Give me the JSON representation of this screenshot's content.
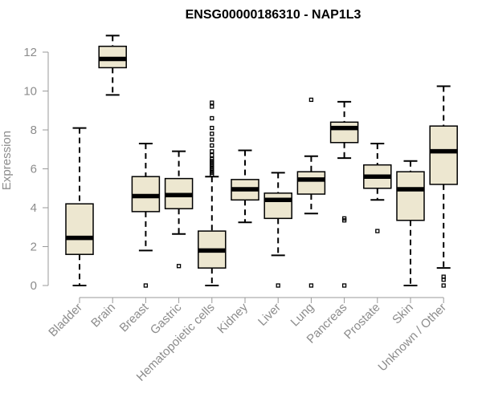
{
  "chart_data": {
    "type": "boxplot",
    "title": "ENSG00000186310 - NAP1L3",
    "xlabel": "",
    "ylabel": "Expression",
    "ylim": [
      0,
      12.8
    ],
    "yticks": [
      0,
      2,
      4,
      6,
      8,
      10,
      12
    ],
    "box_fill": "#ede7d0",
    "grid": false,
    "categories": [
      "Bladder",
      "Brain",
      "Breast",
      "Gastric",
      "Hematopoietic cells",
      "Kidney",
      "Liver",
      "Lung",
      "Pancreas",
      "Prostate",
      "Skin",
      "Unknown / Other"
    ],
    "boxes": [
      {
        "q1": 1.6,
        "median": 2.45,
        "q3": 4.2,
        "whisker_low": 0.0,
        "whisker_high": 8.1,
        "outliers": []
      },
      {
        "q1": 11.2,
        "median": 11.65,
        "q3": 12.3,
        "whisker_low": 9.8,
        "whisker_high": 12.85,
        "outliers": []
      },
      {
        "q1": 3.8,
        "median": 4.6,
        "q3": 5.6,
        "whisker_low": 1.8,
        "whisker_high": 7.3,
        "outliers": [
          0.0
        ]
      },
      {
        "q1": 3.95,
        "median": 4.65,
        "q3": 5.5,
        "whisker_low": 2.65,
        "whisker_high": 6.9,
        "outliers": [
          1.0
        ]
      },
      {
        "q1": 0.9,
        "median": 1.8,
        "q3": 2.8,
        "whisker_low": 0.0,
        "whisker_high": 5.6,
        "outliers": [
          5.7,
          5.8,
          5.9,
          6.0,
          6.1,
          6.2,
          6.3,
          6.4,
          6.5,
          6.7,
          6.9,
          7.2,
          7.5,
          7.8,
          8.1,
          8.6,
          9.2,
          9.4
        ]
      },
      {
        "q1": 4.4,
        "median": 4.95,
        "q3": 5.45,
        "whisker_low": 3.25,
        "whisker_high": 6.95,
        "outliers": []
      },
      {
        "q1": 3.45,
        "median": 4.4,
        "q3": 4.75,
        "whisker_low": 1.55,
        "whisker_high": 5.8,
        "outliers": [
          0.0
        ]
      },
      {
        "q1": 4.7,
        "median": 5.45,
        "q3": 5.85,
        "whisker_low": 3.7,
        "whisker_high": 6.65,
        "outliers": [
          0.0,
          9.55
        ]
      },
      {
        "q1": 7.35,
        "median": 8.1,
        "q3": 8.4,
        "whisker_low": 6.55,
        "whisker_high": 9.45,
        "outliers": [
          0.0,
          3.35,
          3.45
        ]
      },
      {
        "q1": 5.0,
        "median": 5.6,
        "q3": 6.2,
        "whisker_low": 4.4,
        "whisker_high": 7.3,
        "outliers": [
          2.8
        ]
      },
      {
        "q1": 3.35,
        "median": 4.95,
        "q3": 5.85,
        "whisker_low": 0.0,
        "whisker_high": 6.4,
        "outliers": []
      },
      {
        "q1": 5.2,
        "median": 6.9,
        "q3": 8.2,
        "whisker_low": 0.9,
        "whisker_high": 10.25,
        "outliers": [
          0.0,
          0.3,
          0.45
        ]
      }
    ]
  }
}
